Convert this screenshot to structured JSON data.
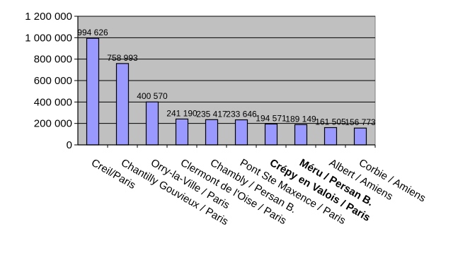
{
  "chart_data": {
    "type": "bar",
    "categories": [
      "Creil/Paris",
      "Chantilly Gouvieux / Paris",
      "Orry-la-Ville / Paris",
      "Clermont de l'Oise / Paris",
      "Chambly / Persan B.",
      "Pont Ste Maxence / Paris",
      "Crépy en Valois / Paris",
      "Méru / Persan B.",
      "Albert / Amiens",
      "Corbie / Amiens"
    ],
    "values": [
      994626,
      758993,
      400570,
      241190,
      235417,
      233646,
      194571,
      189149,
      161505,
      156773
    ],
    "value_labels": [
      "994 626",
      "758 993",
      "400 570",
      "241 190",
      "235 417",
      "233 646",
      "194 571",
      "189 149",
      "161 505",
      "156 773"
    ],
    "bold_categories": [
      6,
      7
    ],
    "yticks": [
      0,
      200000,
      400000,
      600000,
      800000,
      1000000,
      1200000
    ],
    "ytick_labels": [
      "0",
      "200 000",
      "400 000",
      "600 000",
      "800 000",
      "1 000 000",
      "1 200 000"
    ],
    "ylim": [
      0,
      1200000
    ],
    "grid": true,
    "title": "",
    "xlabel": "",
    "ylabel": "",
    "colors": {
      "bar_fill": "#9999ff",
      "bar_stroke": "#000000",
      "plot_bg": "#c0c0c0",
      "grid": "#000000"
    }
  }
}
